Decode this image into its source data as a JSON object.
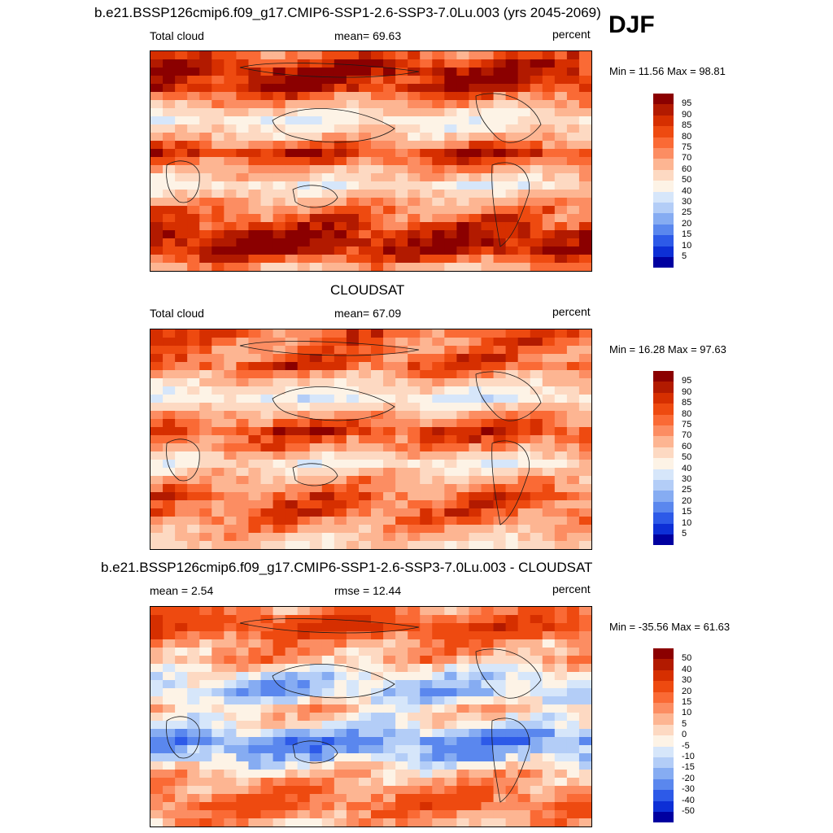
{
  "season": "DJF",
  "units": "percent",
  "panels": [
    {
      "title": "b.e21.BSSP126cmip6.f09_g17.CMIP6-SSP1-2.6-SSP3-7.0Lu.003 (yrs 2045-2069)",
      "left": "Total cloud",
      "center": "mean=  69.63",
      "right": "percent",
      "minmax": "Min =  11.56 Max =  98.81",
      "scale": "abs",
      "zonal": [
        80,
        94,
        90,
        68,
        45,
        62,
        87,
        70,
        48,
        68,
        80,
        92,
        94,
        68
      ]
    },
    {
      "title": "CLOUDSAT",
      "left": "Total cloud",
      "center": "mean=  67.09",
      "right": "percent",
      "minmax": "Min =  16.28 Max =  97.63",
      "scale": "abs",
      "zonal": [
        80,
        76,
        82,
        60,
        42,
        68,
        86,
        72,
        48,
        66,
        78,
        80,
        70,
        55
      ]
    },
    {
      "title": "b.e21.BSSP126cmip6.f09_g17.CMIP6-SSP1-2.6-SSP3-7.0Lu.003 - CLOUDSAT",
      "left": "mean =   2.54",
      "center": "rmse =  12.44",
      "right": "percent",
      "minmax": "Min = -35.56 Max =  61.63",
      "scale": "diff",
      "zonal": [
        15,
        28,
        12,
        8,
        -8,
        -14,
        4,
        -5,
        -24,
        -12,
        6,
        14,
        20,
        8
      ]
    }
  ],
  "colorbars": {
    "abs": {
      "ticks": [
        "95",
        "90",
        "85",
        "80",
        "75",
        "70",
        "60",
        "50",
        "40",
        "30",
        "25",
        "20",
        "15",
        "10",
        "5"
      ],
      "colors": [
        "#8b0000",
        "#b21a00",
        "#d62f00",
        "#ee4a10",
        "#fa6a35",
        "#fc8d62",
        "#fdb592",
        "#fdd9c2",
        "#fdf3e6",
        "#d6e6fa",
        "#b3cdf7",
        "#86acf2",
        "#5a87ee",
        "#2d5ae8",
        "#0d2fd6",
        "#0000a0"
      ]
    },
    "diff": {
      "ticks": [
        "50",
        "40",
        "30",
        "20",
        "15",
        "10",
        "5",
        "0",
        "-5",
        "-10",
        "-15",
        "-20",
        "-30",
        "-40",
        "-50"
      ],
      "colors": [
        "#8b0000",
        "#b21a00",
        "#d62f00",
        "#ee4a10",
        "#fa6a35",
        "#fc8d62",
        "#fdb592",
        "#fdd9c2",
        "#fdf3e6",
        "#d6e6fa",
        "#b3cdf7",
        "#86acf2",
        "#5a87ee",
        "#2d5ae8",
        "#0d2fd6",
        "#0000a0"
      ]
    }
  }
}
